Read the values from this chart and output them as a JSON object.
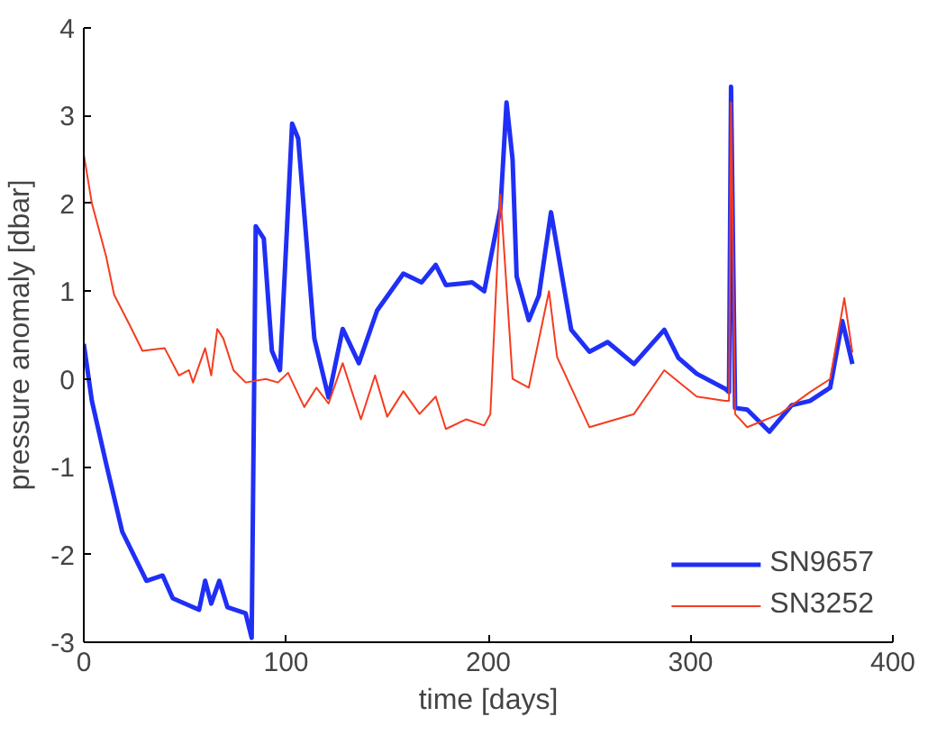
{
  "chart_data": {
    "type": "line",
    "xlabel": "time [days]",
    "ylabel": "pressure anomaly [dbar]",
    "xlim": [
      0,
      400
    ],
    "ylim": [
      -3,
      4
    ],
    "xticks": [
      0,
      100,
      200,
      300,
      400
    ],
    "yticks": [
      -3,
      -2,
      -1,
      0,
      1,
      2,
      3,
      4
    ],
    "grid": false,
    "legend": "bottom right",
    "line_style": "solid",
    "marker": "none",
    "series": [
      {
        "name": "SN9657",
        "color": "#1f2ff5",
        "x": [
          0,
          4,
          11,
          19,
          31,
          39,
          44,
          57,
          60,
          63,
          67,
          71,
          80,
          83,
          85,
          89,
          93,
          97,
          103,
          106,
          114,
          121,
          128,
          136,
          145,
          158,
          167,
          174,
          179,
          192,
          198,
          206,
          209,
          212,
          214,
          220,
          225,
          231,
          241,
          250,
          259,
          272,
          287,
          294,
          303,
          317,
          319,
          320,
          322,
          328,
          339,
          350,
          359,
          369,
          375,
          380
        ],
        "values": [
          0.4,
          -0.25,
          -0.96,
          -1.74,
          -2.3,
          -2.24,
          -2.5,
          -2.63,
          -2.3,
          -2.56,
          -2.3,
          -2.6,
          -2.67,
          -2.95,
          1.74,
          1.6,
          0.32,
          0.1,
          2.91,
          2.74,
          0.46,
          -0.21,
          0.57,
          0.18,
          0.78,
          1.2,
          1.1,
          1.3,
          1.07,
          1.1,
          1.0,
          1.95,
          3.15,
          2.5,
          1.17,
          0.67,
          0.95,
          1.9,
          0.56,
          0.31,
          0.42,
          0.17,
          0.56,
          0.24,
          0.06,
          -0.11,
          -0.15,
          3.33,
          -0.33,
          -0.35,
          -0.6,
          -0.3,
          -0.25,
          -0.1,
          0.66,
          0.17
        ]
      },
      {
        "name": "SN3252",
        "color": "#f53c1f",
        "x": [
          0,
          4,
          11,
          15,
          23,
          29,
          40,
          47,
          52,
          54,
          60,
          63,
          66,
          69,
          74,
          80,
          90,
          96,
          101,
          109,
          115,
          121,
          128,
          137,
          144,
          150,
          158,
          166,
          174,
          179,
          189,
          198,
          201,
          206,
          212,
          220,
          230,
          234,
          250,
          272,
          287,
          303,
          317,
          319,
          320,
          322,
          328,
          344,
          359,
          369,
          376,
          380
        ],
        "values": [
          2.56,
          2.0,
          1.4,
          0.96,
          0.6,
          0.32,
          0.35,
          0.04,
          0.1,
          -0.04,
          0.35,
          0.04,
          0.57,
          0.46,
          0.1,
          -0.04,
          0,
          -0.04,
          0.07,
          -0.32,
          -0.1,
          -0.28,
          0.18,
          -0.46,
          0.04,
          -0.43,
          -0.14,
          -0.4,
          -0.2,
          -0.57,
          -0.46,
          -0.53,
          -0.4,
          2.1,
          0.0,
          -0.1,
          1.0,
          0.25,
          -0.55,
          -0.4,
          0.1,
          -0.2,
          -0.25,
          -0.25,
          3.15,
          -0.4,
          -0.55,
          -0.4,
          -0.15,
          0.0,
          0.92,
          0.3
        ]
      }
    ]
  }
}
